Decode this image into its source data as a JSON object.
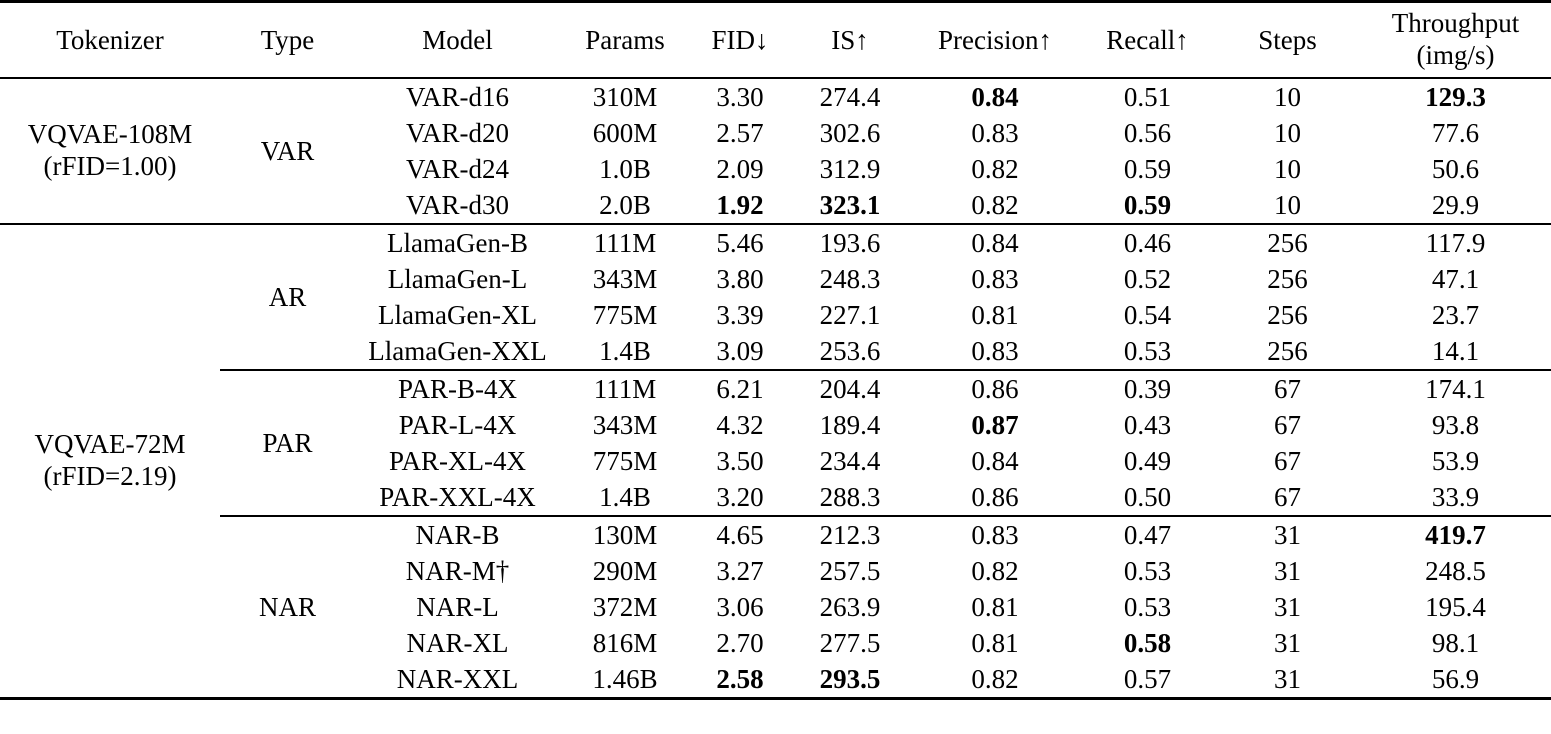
{
  "table": {
    "header": {
      "tokenizer": "Tokenizer",
      "type": "Type",
      "model": "Model",
      "params": "Params",
      "fid": "FID↓",
      "is": "IS↑",
      "precision": "Precision↑",
      "recall": "Recall↑",
      "steps": "Steps",
      "throughput": "Throughput",
      "throughput_unit": "(img/s)"
    },
    "groups": [
      {
        "tokenizer": "VQVAE-108M",
        "tokenizer_detail": "(rFID=1.00)",
        "sections": [
          {
            "type": "VAR",
            "rows": [
              {
                "model": "VAR-d16",
                "params": "310M",
                "fid": "3.30",
                "is": "274.4",
                "precision": "0.84",
                "recall": "0.51",
                "steps": "10",
                "throughput": "129.3",
                "bold": [
                  "precision",
                  "throughput"
                ]
              },
              {
                "model": "VAR-d20",
                "params": "600M",
                "fid": "2.57",
                "is": "302.6",
                "precision": "0.83",
                "recall": "0.56",
                "steps": "10",
                "throughput": "77.6",
                "bold": []
              },
              {
                "model": "VAR-d24",
                "params": "1.0B",
                "fid": "2.09",
                "is": "312.9",
                "precision": "0.82",
                "recall": "0.59",
                "steps": "10",
                "throughput": "50.6",
                "bold": []
              },
              {
                "model": "VAR-d30",
                "params": "2.0B",
                "fid": "1.92",
                "is": "323.1",
                "precision": "0.82",
                "recall": "0.59",
                "steps": "10",
                "throughput": "29.9",
                "bold": [
                  "fid",
                  "is",
                  "recall"
                ]
              }
            ]
          }
        ]
      },
      {
        "tokenizer": "VQVAE-72M",
        "tokenizer_detail": "(rFID=2.19)",
        "sections": [
          {
            "type": "AR",
            "rows": [
              {
                "model": "LlamaGen-B",
                "params": "111M",
                "fid": "5.46",
                "is": "193.6",
                "precision": "0.84",
                "recall": "0.46",
                "steps": "256",
                "throughput": "117.9",
                "bold": []
              },
              {
                "model": "LlamaGen-L",
                "params": "343M",
                "fid": "3.80",
                "is": "248.3",
                "precision": "0.83",
                "recall": "0.52",
                "steps": "256",
                "throughput": "47.1",
                "bold": []
              },
              {
                "model": "LlamaGen-XL",
                "params": "775M",
                "fid": "3.39",
                "is": "227.1",
                "precision": "0.81",
                "recall": "0.54",
                "steps": "256",
                "throughput": "23.7",
                "bold": []
              },
              {
                "model": "LlamaGen-XXL",
                "params": "1.4B",
                "fid": "3.09",
                "is": "253.6",
                "precision": "0.83",
                "recall": "0.53",
                "steps": "256",
                "throughput": "14.1",
                "bold": []
              }
            ]
          },
          {
            "type": "PAR",
            "rows": [
              {
                "model": "PAR-B-4X",
                "params": "111M",
                "fid": "6.21",
                "is": "204.4",
                "precision": "0.86",
                "recall": "0.39",
                "steps": "67",
                "throughput": "174.1",
                "bold": []
              },
              {
                "model": "PAR-L-4X",
                "params": "343M",
                "fid": "4.32",
                "is": "189.4",
                "precision": "0.87",
                "recall": "0.43",
                "steps": "67",
                "throughput": "93.8",
                "bold": [
                  "precision"
                ]
              },
              {
                "model": "PAR-XL-4X",
                "params": "775M",
                "fid": "3.50",
                "is": "234.4",
                "precision": "0.84",
                "recall": "0.49",
                "steps": "67",
                "throughput": "53.9",
                "bold": []
              },
              {
                "model": "PAR-XXL-4X",
                "params": "1.4B",
                "fid": "3.20",
                "is": "288.3",
                "precision": "0.86",
                "recall": "0.50",
                "steps": "67",
                "throughput": "33.9",
                "bold": []
              }
            ]
          },
          {
            "type": "NAR",
            "rows": [
              {
                "model": "NAR-B",
                "params": "130M",
                "fid": "4.65",
                "is": "212.3",
                "precision": "0.83",
                "recall": "0.47",
                "steps": "31",
                "throughput": "419.7",
                "bold": [
                  "throughput"
                ]
              },
              {
                "model": "NAR-M†",
                "params": "290M",
                "fid": "3.27",
                "is": "257.5",
                "precision": "0.82",
                "recall": "0.53",
                "steps": "31",
                "throughput": "248.5",
                "bold": []
              },
              {
                "model": "NAR-L",
                "params": "372M",
                "fid": "3.06",
                "is": "263.9",
                "precision": "0.81",
                "recall": "0.53",
                "steps": "31",
                "throughput": "195.4",
                "bold": []
              },
              {
                "model": "NAR-XL",
                "params": "816M",
                "fid": "2.70",
                "is": "277.5",
                "precision": "0.81",
                "recall": "0.58",
                "steps": "31",
                "throughput": "98.1",
                "bold": [
                  "recall"
                ]
              },
              {
                "model": "NAR-XXL",
                "params": "1.46B",
                "fid": "2.58",
                "is": "293.5",
                "precision": "0.82",
                "recall": "0.57",
                "steps": "31",
                "throughput": "56.9",
                "bold": [
                  "fid",
                  "is"
                ]
              }
            ]
          }
        ]
      }
    ]
  }
}
